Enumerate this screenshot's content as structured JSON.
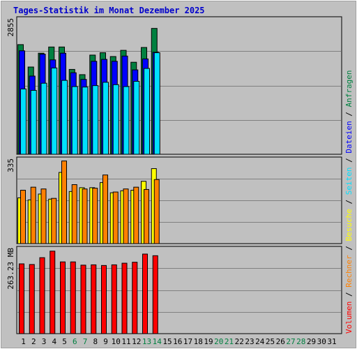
{
  "title": "Tages-Statistik im Monat Dezember 2025",
  "colors": {
    "background": "#c0c0c0",
    "anfragen": "#008040",
    "dateien": "#0000ff",
    "seiten": "#00e0ff",
    "besuche": "#ffff00",
    "rechner": "#ff8000",
    "volumen": "#ff0000",
    "weekend_label": "#008040",
    "weekday_label": "#000000"
  },
  "chart_data": [
    {
      "type": "bar",
      "panel": "top",
      "ymax_label": "2855",
      "ylim": [
        0,
        2855
      ],
      "categories": [
        "1",
        "2",
        "3",
        "4",
        "5",
        "6",
        "7",
        "8",
        "9",
        "10",
        "11",
        "12",
        "13",
        "14",
        "15",
        "16",
        "17",
        "18",
        "19",
        "20",
        "21",
        "22",
        "23",
        "24",
        "25",
        "26",
        "27",
        "28",
        "29",
        "30",
        "31"
      ],
      "series": [
        {
          "name": "Anfragen",
          "values": [
            2300,
            1830,
            2120,
            2250,
            2250,
            1780,
            1670,
            2080,
            2130,
            2050,
            2180,
            1930,
            2240,
            2640,
            null,
            null,
            null,
            null,
            null,
            null,
            null,
            null,
            null,
            null,
            null,
            null,
            null,
            null,
            null,
            null,
            null
          ]
        },
        {
          "name": "Dateien",
          "values": [
            2170,
            1640,
            2100,
            1980,
            2120,
            1710,
            1570,
            1950,
            1990,
            1950,
            2060,
            1770,
            2000,
            2140,
            null,
            null,
            null,
            null,
            null,
            null,
            null,
            null,
            null,
            null,
            null,
            null,
            null,
            null,
            null,
            null,
            null
          ]
        },
        {
          "name": "Seiten",
          "values": [
            1370,
            1340,
            1490,
            1810,
            1550,
            1420,
            1410,
            1440,
            1510,
            1460,
            1420,
            1530,
            1800,
            2130,
            null,
            null,
            null,
            null,
            null,
            null,
            null,
            null,
            null,
            null,
            null,
            null,
            null,
            null,
            null,
            null,
            null
          ]
        }
      ]
    },
    {
      "type": "bar",
      "panel": "middle",
      "ymax_label": "335",
      "ylim": [
        0,
        335
      ],
      "categories": [
        "1",
        "2",
        "3",
        "4",
        "5",
        "6",
        "7",
        "8",
        "9",
        "10",
        "11",
        "12",
        "13",
        "14",
        "15",
        "16",
        "17",
        "18",
        "19",
        "20",
        "21",
        "22",
        "23",
        "24",
        "25",
        "26",
        "27",
        "28",
        "29",
        "30",
        "31"
      ],
      "series": [
        {
          "name": "Besuche",
          "values": [
            180,
            172,
            195,
            175,
            280,
            205,
            220,
            220,
            240,
            200,
            208,
            210,
            245,
            295,
            null,
            null,
            null,
            null,
            null,
            null,
            null,
            null,
            null,
            null,
            null,
            null,
            null,
            null,
            null,
            null,
            null
          ]
        },
        {
          "name": "Rechner",
          "values": [
            210,
            222,
            215,
            178,
            325,
            232,
            215,
            218,
            270,
            203,
            215,
            222,
            213,
            252,
            null,
            null,
            null,
            null,
            null,
            null,
            null,
            null,
            null,
            null,
            null,
            null,
            null,
            null,
            null,
            null,
            null
          ]
        }
      ]
    },
    {
      "type": "bar",
      "panel": "bottom",
      "ymax_label": "263.23 MB",
      "ylim": [
        0,
        263.23
      ],
      "categories": [
        "1",
        "2",
        "3",
        "4",
        "5",
        "6",
        "7",
        "8",
        "9",
        "10",
        "11",
        "12",
        "13",
        "14",
        "15",
        "16",
        "17",
        "18",
        "19",
        "20",
        "21",
        "22",
        "23",
        "24",
        "25",
        "26",
        "27",
        "28",
        "29",
        "30",
        "31"
      ],
      "series": [
        {
          "name": "Volumen",
          "values": [
            214,
            212,
            233,
            253,
            220,
            220,
            210,
            211,
            209,
            211,
            216,
            219,
            244,
            239,
            null,
            null,
            null,
            null,
            null,
            null,
            null,
            null,
            null,
            null,
            null,
            null,
            null,
            null,
            null,
            null,
            null
          ]
        }
      ]
    }
  ],
  "x_labels": [
    {
      "text": "1",
      "weekend": false
    },
    {
      "text": "2",
      "weekend": false
    },
    {
      "text": "3",
      "weekend": false
    },
    {
      "text": "4",
      "weekend": false
    },
    {
      "text": "5",
      "weekend": false
    },
    {
      "text": "6",
      "weekend": true
    },
    {
      "text": "7",
      "weekend": true
    },
    {
      "text": "8",
      "weekend": false
    },
    {
      "text": "9",
      "weekend": false
    },
    {
      "text": "10",
      "weekend": false
    },
    {
      "text": "11",
      "weekend": false
    },
    {
      "text": "12",
      "weekend": false
    },
    {
      "text": "13",
      "weekend": true
    },
    {
      "text": "14",
      "weekend": true
    },
    {
      "text": "15",
      "weekend": false
    },
    {
      "text": "16",
      "weekend": false
    },
    {
      "text": "17",
      "weekend": false
    },
    {
      "text": "18",
      "weekend": false
    },
    {
      "text": "19",
      "weekend": false
    },
    {
      "text": "20",
      "weekend": true
    },
    {
      "text": "21",
      "weekend": true
    },
    {
      "text": "22",
      "weekend": false
    },
    {
      "text": "23",
      "weekend": false
    },
    {
      "text": "24",
      "weekend": false
    },
    {
      "text": "25",
      "weekend": false
    },
    {
      "text": "26",
      "weekend": false
    },
    {
      "text": "27",
      "weekend": true
    },
    {
      "text": "28",
      "weekend": true
    },
    {
      "text": "29",
      "weekend": false
    },
    {
      "text": "30",
      "weekend": false
    },
    {
      "text": "31",
      "weekend": false
    }
  ],
  "legend": [
    {
      "text": "Volumen",
      "color": "#ff0000"
    },
    {
      "text": "/",
      "color": "#000000"
    },
    {
      "text": "Rechner",
      "color": "#ff8000"
    },
    {
      "text": "/",
      "color": "#000000"
    },
    {
      "text": "Besuche",
      "color": "#ffff00"
    },
    {
      "text": "/",
      "color": "#000000"
    },
    {
      "text": "Seiten",
      "color": "#00e0ff"
    },
    {
      "text": "/",
      "color": "#000000"
    },
    {
      "text": "Dateien",
      "color": "#0000ff"
    },
    {
      "text": "/",
      "color": "#000000"
    },
    {
      "text": "Anfragen",
      "color": "#008040"
    }
  ]
}
